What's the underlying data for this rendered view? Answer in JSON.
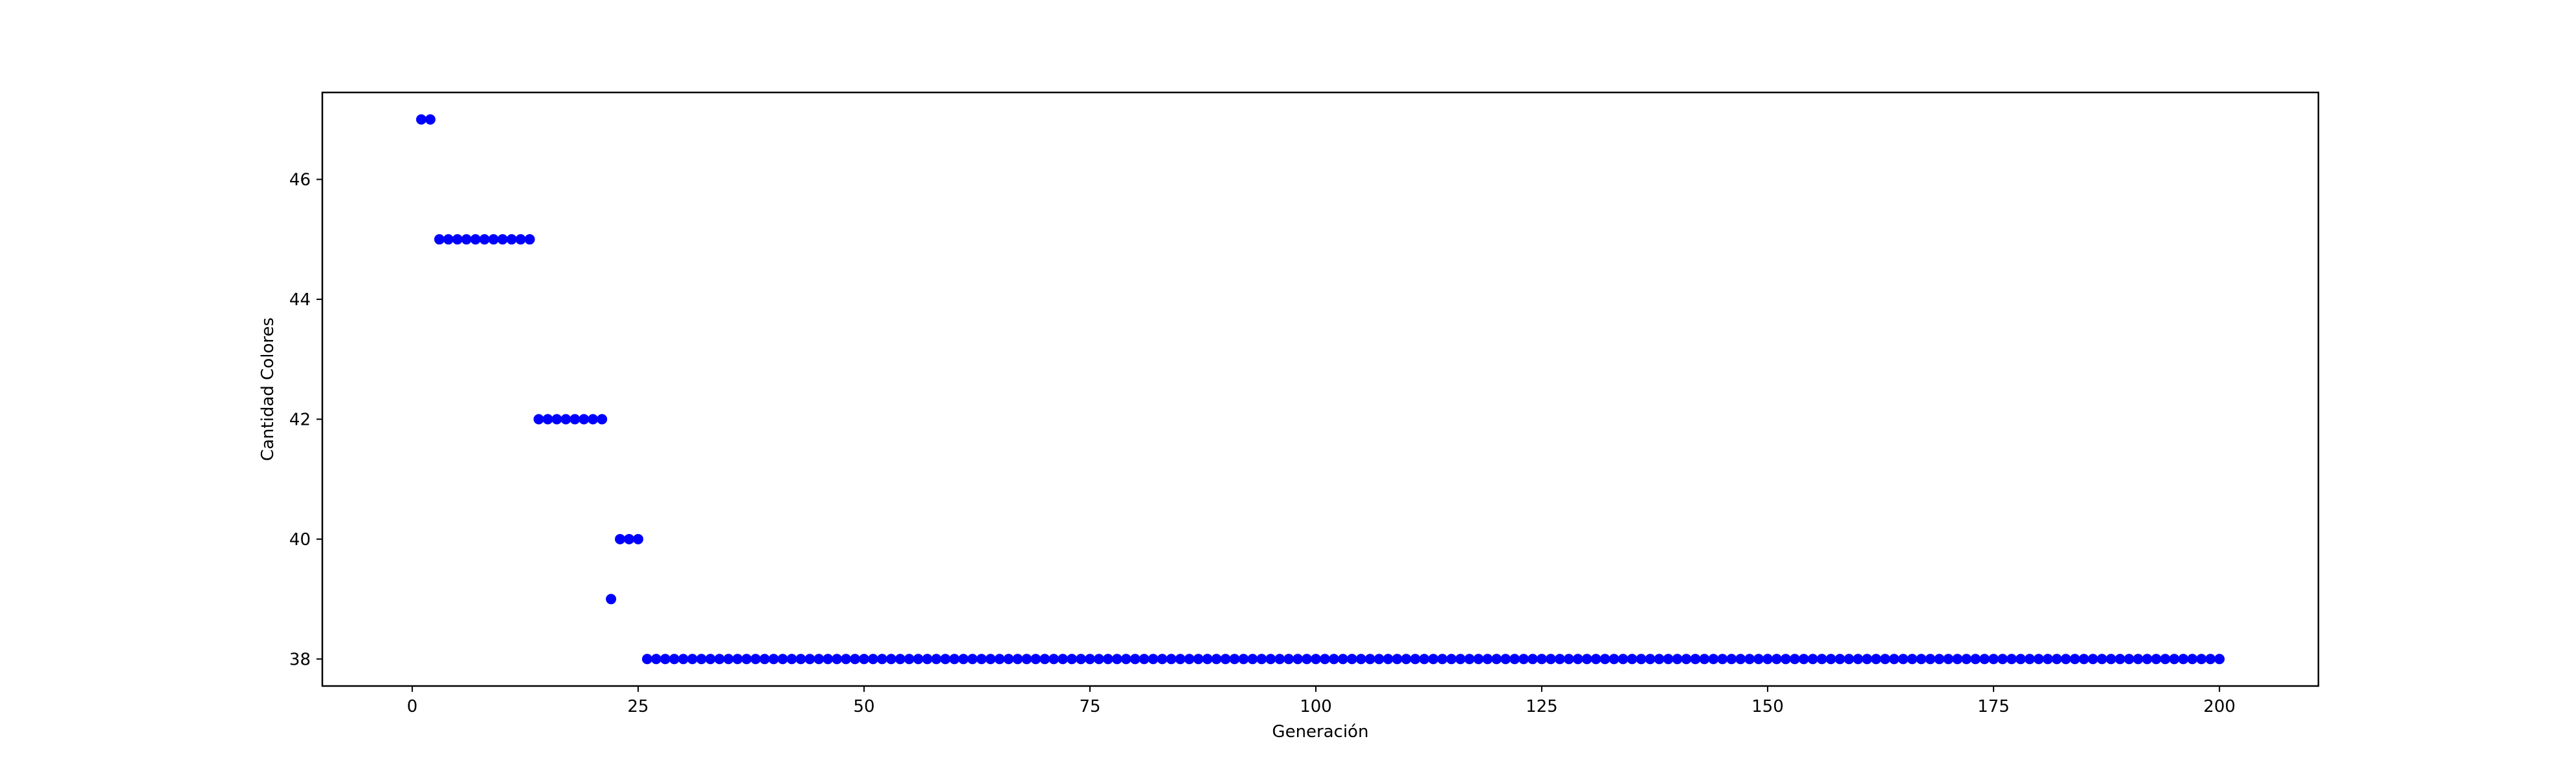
{
  "chart_data": {
    "type": "scatter",
    "title": "",
    "xlabel": "Generación",
    "ylabel": "Cantidad Colores",
    "xlim": [
      -9.95,
      210.95
    ],
    "ylim": [
      37.55,
      47.45
    ],
    "x_ticks": [
      0,
      25,
      50,
      75,
      100,
      125,
      150,
      175,
      200
    ],
    "x_tick_labels": [
      "0",
      "25",
      "50",
      "75",
      "100",
      "125",
      "150",
      "175",
      "200"
    ],
    "y_ticks": [
      38,
      40,
      42,
      44,
      46
    ],
    "y_tick_labels": [
      "38",
      "40",
      "42",
      "44",
      "46"
    ],
    "grid": false,
    "legend": "none",
    "marker_color": "#0000ff",
    "series": [
      {
        "segments": [
          {
            "x_start": 1,
            "x_end": 2,
            "y": 47
          },
          {
            "x_start": 3,
            "x_end": 13,
            "y": 45
          },
          {
            "x_start": 14,
            "x_end": 21,
            "y": 42
          },
          {
            "x_start": 22,
            "x_end": 22,
            "y": 39
          },
          {
            "x_start": 23,
            "x_end": 25,
            "y": 40
          },
          {
            "x_start": 26,
            "x_end": 200,
            "y": 38
          }
        ]
      }
    ]
  }
}
